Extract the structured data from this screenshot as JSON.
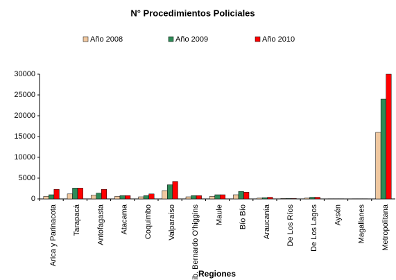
{
  "chart_data": {
    "type": "bar",
    "title": "N° Procedimientos Policiales",
    "xlabel": "Regiones",
    "categories": [
      "Arica y Parinacota",
      "Tarapacá",
      "Antofagasta",
      "Atacama",
      "Coquimbo",
      "Valparaíso",
      "Lib. Bernardo O'higgins",
      "Maule",
      "Bío Bío",
      "Araucanía",
      "De Los Ríos",
      "De Los Lagos",
      "Aysén",
      "Magallanes",
      "Metropolitana"
    ],
    "series": [
      {
        "name": "Año 2008",
        "color": "#f0c8a0",
        "values": [
          600,
          1200,
          900,
          600,
          500,
          2000,
          500,
          600,
          1000,
          200,
          100,
          200,
          50,
          50,
          16000
        ]
      },
      {
        "name": "Año 2009",
        "color": "#2e8b57",
        "values": [
          1000,
          2600,
          1400,
          800,
          800,
          3400,
          800,
          1000,
          1800,
          300,
          100,
          400,
          50,
          50,
          24000
        ]
      },
      {
        "name": "Año 2010",
        "color": "#ff0000",
        "values": [
          2300,
          2600,
          2300,
          800,
          1200,
          4200,
          800,
          1000,
          1600,
          400,
          100,
          400,
          50,
          50,
          30000
        ]
      }
    ],
    "ylim": [
      0,
      30000
    ],
    "yticks": [
      0,
      5000,
      10000,
      15000,
      20000,
      25000,
      30000
    ],
    "legend": "top"
  }
}
